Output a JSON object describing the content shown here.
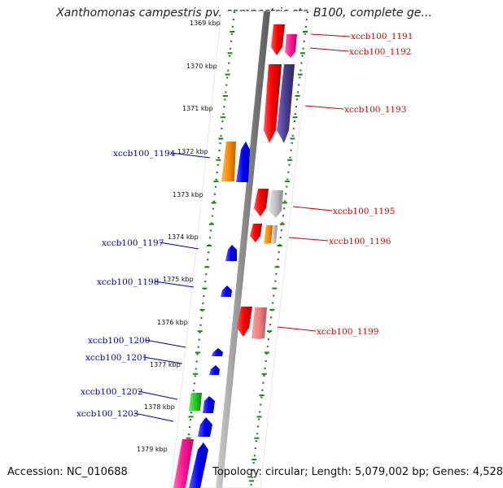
{
  "title": "Xanthomonas campestris pv. campestris str. B100, complete ge...",
  "footer": {
    "accession": "Accession: NC_010688",
    "summary": "Topology: circular; Length: 5,079,002 bp; Genes: 4,528"
  },
  "ruler": {
    "partial_top_label": "1369 kbp",
    "ticks": [
      "1370 kbp",
      "1371 kbp",
      "1372 kbp",
      "1373 kbp",
      "1374 kbp",
      "1375 kbp",
      "1376 kbp",
      "1377 kbp",
      "1378 kbp",
      "1379 kbp"
    ]
  },
  "colors": {
    "forward_label": "#cc0000",
    "reverse_label": "#0000aa",
    "ruler_dots": "#118811",
    "backbone": "#8c8c8c"
  },
  "genes": [
    {
      "id": "xccb100_1191",
      "strand": "forward"
    },
    {
      "id": "xccb100_1192",
      "strand": "forward"
    },
    {
      "id": "xccb100_1193",
      "strand": "forward"
    },
    {
      "id": "xccb100_1194",
      "strand": "reverse"
    },
    {
      "id": "xccb100_1195",
      "strand": "forward"
    },
    {
      "id": "xccb100_1196",
      "strand": "forward"
    },
    {
      "id": "xccb100_1197",
      "strand": "reverse"
    },
    {
      "id": "xccb100_1198",
      "strand": "reverse"
    },
    {
      "id": "xccb100_1199",
      "strand": "forward"
    },
    {
      "id": "xccb100_1200",
      "strand": "reverse"
    },
    {
      "id": "xccb100_1201",
      "strand": "reverse"
    },
    {
      "id": "xccb100_1202",
      "strand": "reverse"
    },
    {
      "id": "xccb100_1203",
      "strand": "reverse"
    }
  ]
}
